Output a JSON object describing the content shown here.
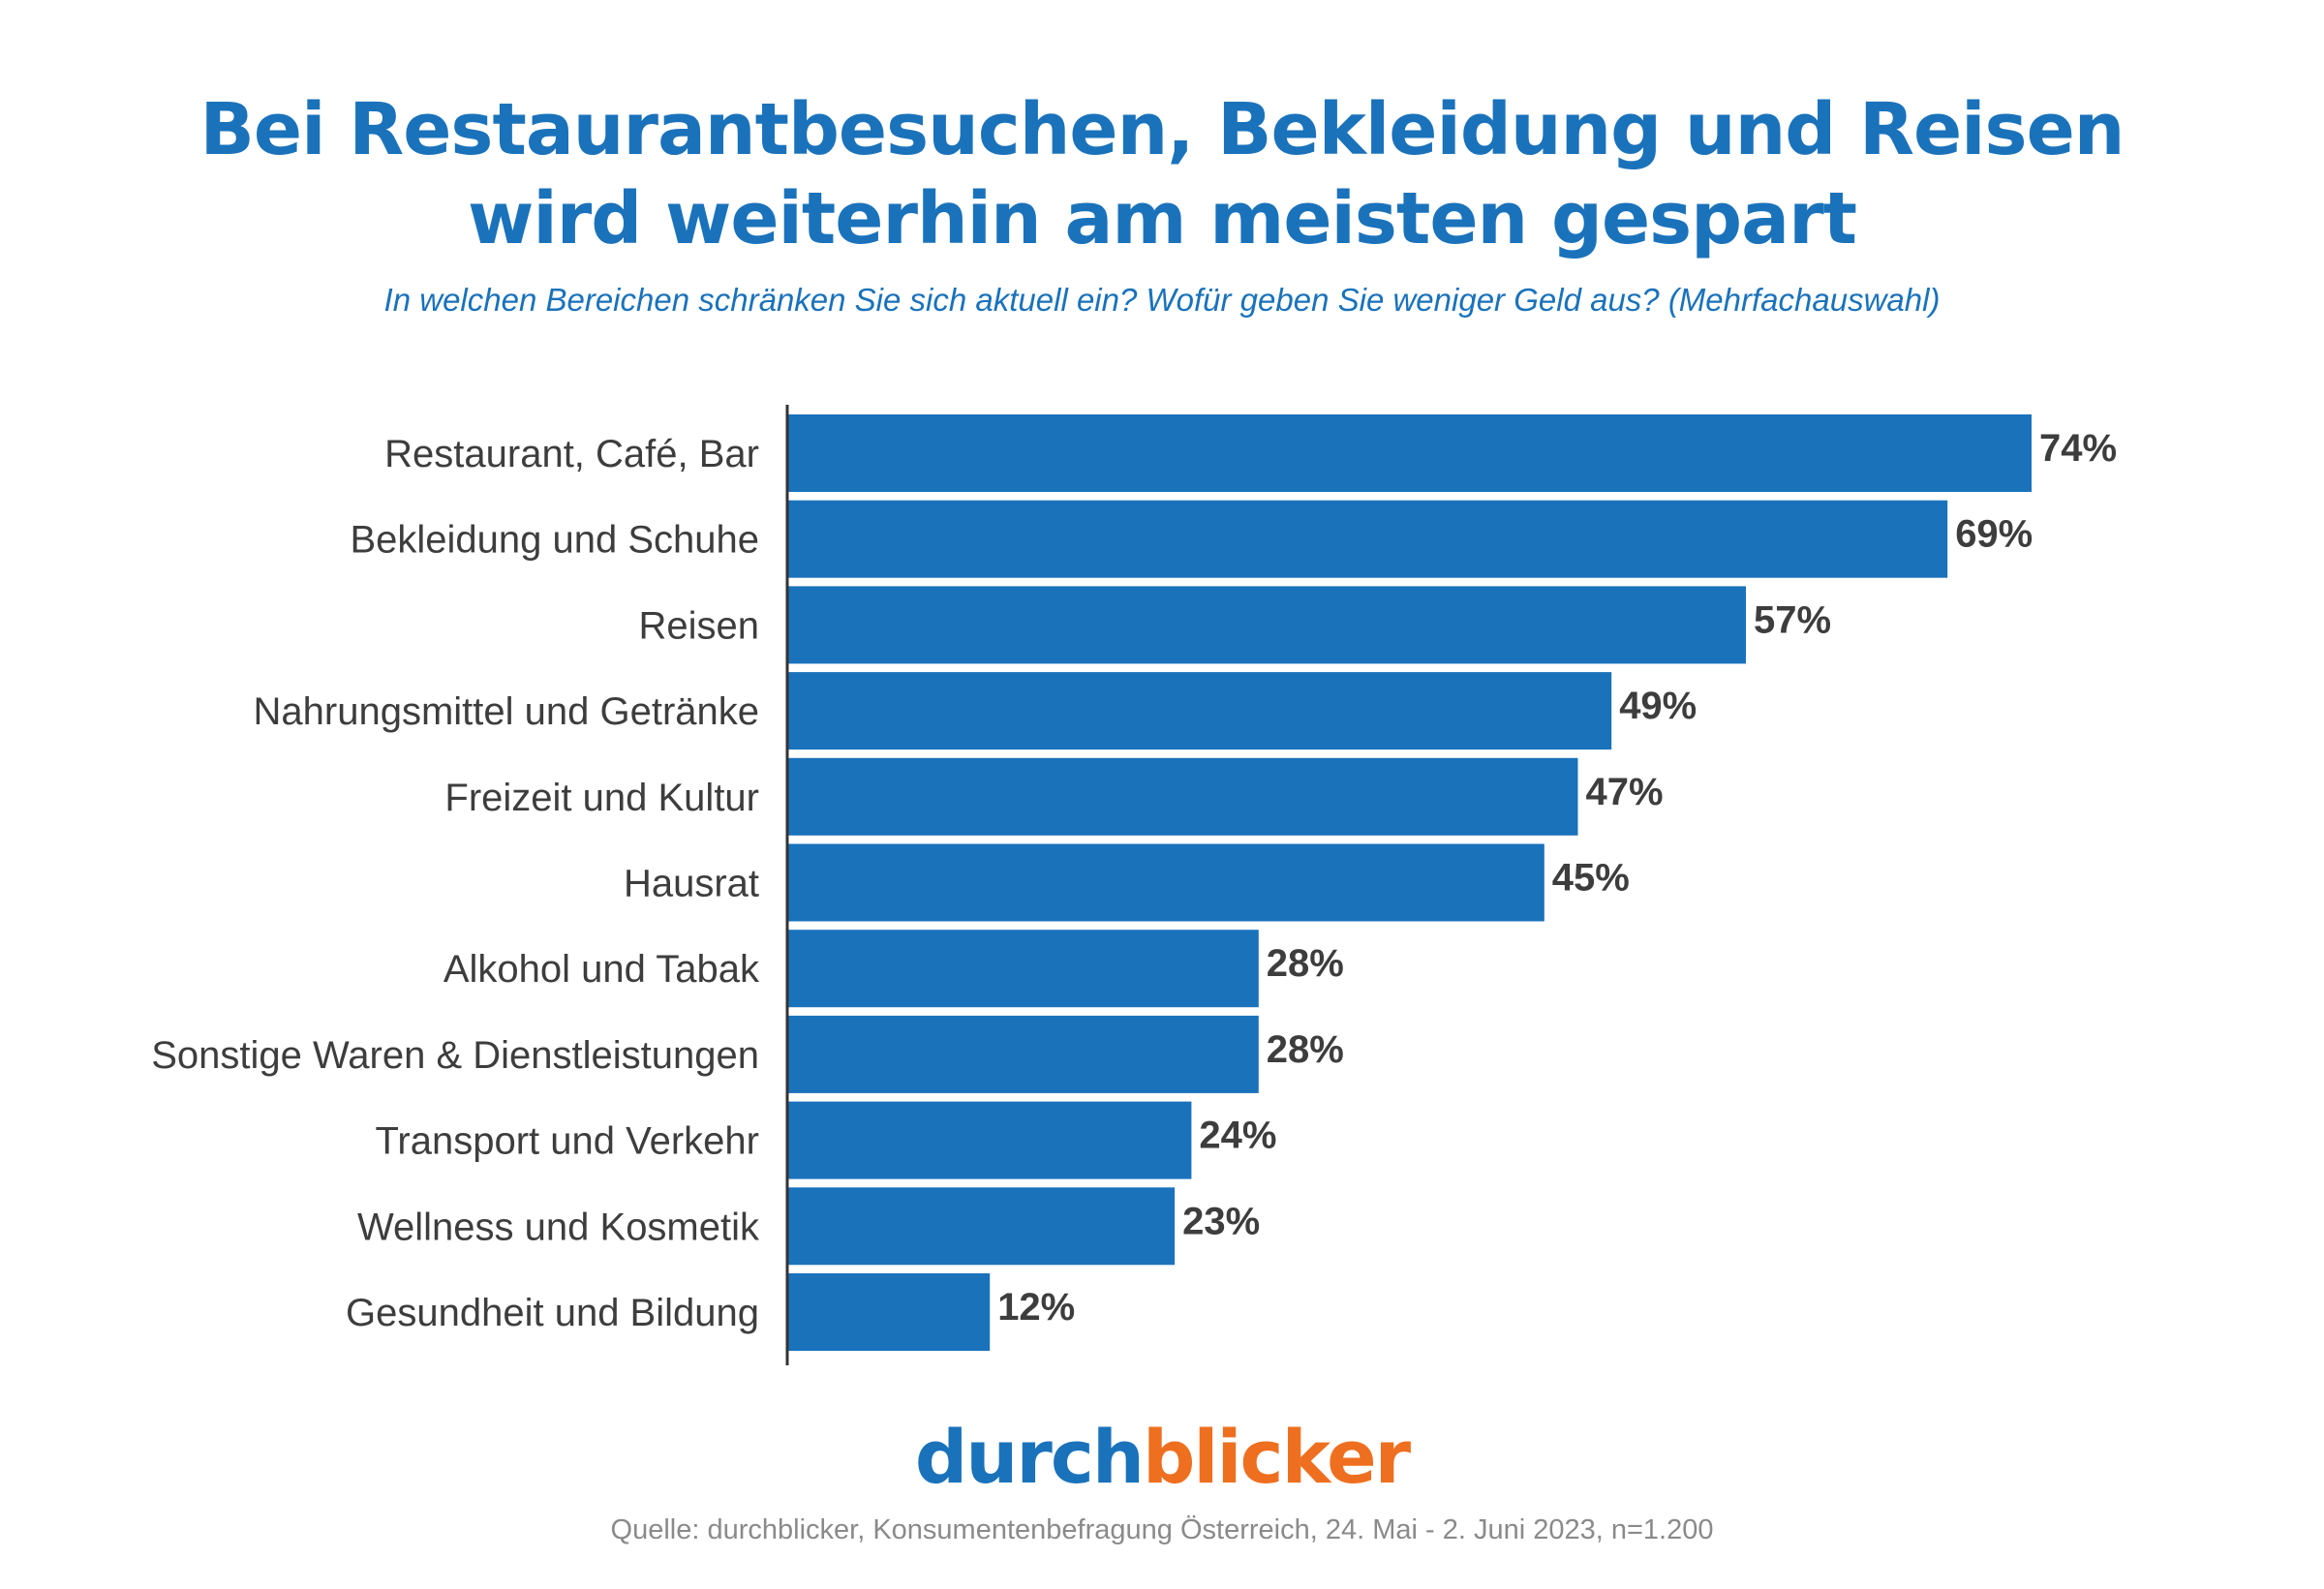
{
  "title_lines": [
    "Bei Restaurantbesuchen, Bekleidung und Reisen",
    "wird weiterhin am meisten gespart"
  ],
  "subtitle": "In welchen Bereichen schränken Sie sich aktuell ein? Wofür geben Sie weniger Geld aus? (Mehrfachauswahl)",
  "logo": {
    "part1": "durch",
    "part2": "blicker"
  },
  "source": "Quelle: durchblicker, Konsumentenbefragung Österreich,  24. Mai - 2. Juni 2023, n=1.200",
  "colors": {
    "bar": "#1a72bb",
    "title": "#1a72bb",
    "logo_blue": "#1a72bb",
    "logo_orange": "#ee6f1f",
    "label_text": "#3d3d3d",
    "axis": "#333333"
  },
  "chart_data": {
    "type": "bar",
    "orientation": "horizontal",
    "categories": [
      "Restaurant, Café, Bar",
      "Bekleidung und Schuhe",
      "Reisen",
      "Nahrungsmittel und Getränke",
      "Freizeit und Kultur",
      "Hausrat",
      "Alkohol und Tabak",
      "Sonstige Waren & Dienstleistungen",
      "Transport und Verkehr",
      "Wellness und Kosmetik",
      "Gesundheit und Bildung"
    ],
    "values": [
      74,
      69,
      57,
      49,
      47,
      45,
      28,
      28,
      24,
      23,
      12
    ],
    "value_labels": [
      "74%",
      "69%",
      "57%",
      "49%",
      "47%",
      "45%",
      "28%",
      "28%",
      "24%",
      "23%",
      "12%"
    ],
    "unit": "%",
    "xlim": [
      0,
      74
    ],
    "grid": false,
    "legend": "none"
  }
}
